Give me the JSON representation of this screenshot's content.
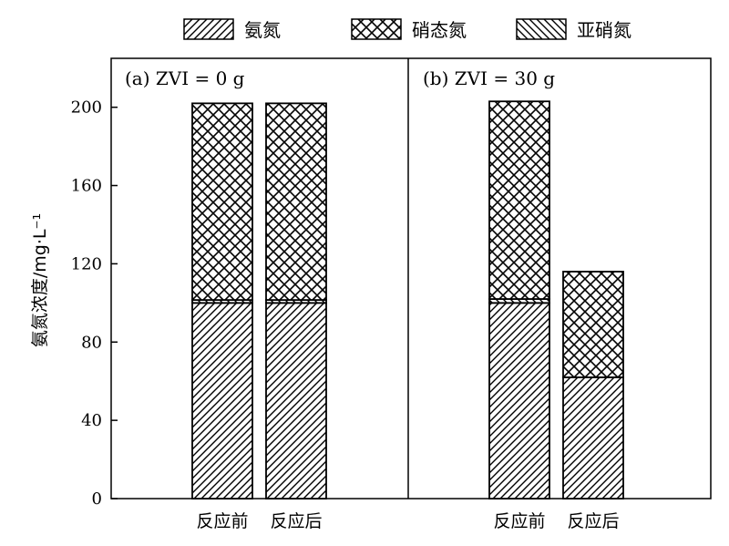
{
  "chart_data": {
    "type": "bar",
    "stacked": true,
    "ylabel": "氨氮浓度/mg·L⁻¹",
    "ylim": [
      0,
      225
    ],
    "yticks": [
      0,
      40,
      80,
      120,
      160,
      200
    ],
    "legend": {
      "placement": "top",
      "entries": [
        {
          "name": "氨氮",
          "pattern": "diagonal-right"
        },
        {
          "name": "硝态氮",
          "pattern": "crosshatch"
        },
        {
          "name": "亚硝氮",
          "pattern": "diagonal-left"
        }
      ]
    },
    "panels": [
      {
        "title": "(a) ZVI = 0 g",
        "categories": [
          "反应前",
          "反应后"
        ],
        "series": [
          {
            "name": "氨氮",
            "values": [
              100,
              100
            ]
          },
          {
            "name": "亚硝氮",
            "values": [
              1.5,
              1.5
            ]
          },
          {
            "name": "硝态氮",
            "values": [
              100.5,
              100.5
            ]
          }
        ]
      },
      {
        "title": "(b) ZVI = 30 g",
        "categories": [
          "反应前",
          "反应后"
        ],
        "series": [
          {
            "name": "氨氮",
            "values": [
              100,
              62
            ]
          },
          {
            "name": "亚硝氮",
            "values": [
              2,
              0
            ]
          },
          {
            "name": "硝态氮",
            "values": [
              101,
              54
            ]
          }
        ]
      }
    ]
  }
}
